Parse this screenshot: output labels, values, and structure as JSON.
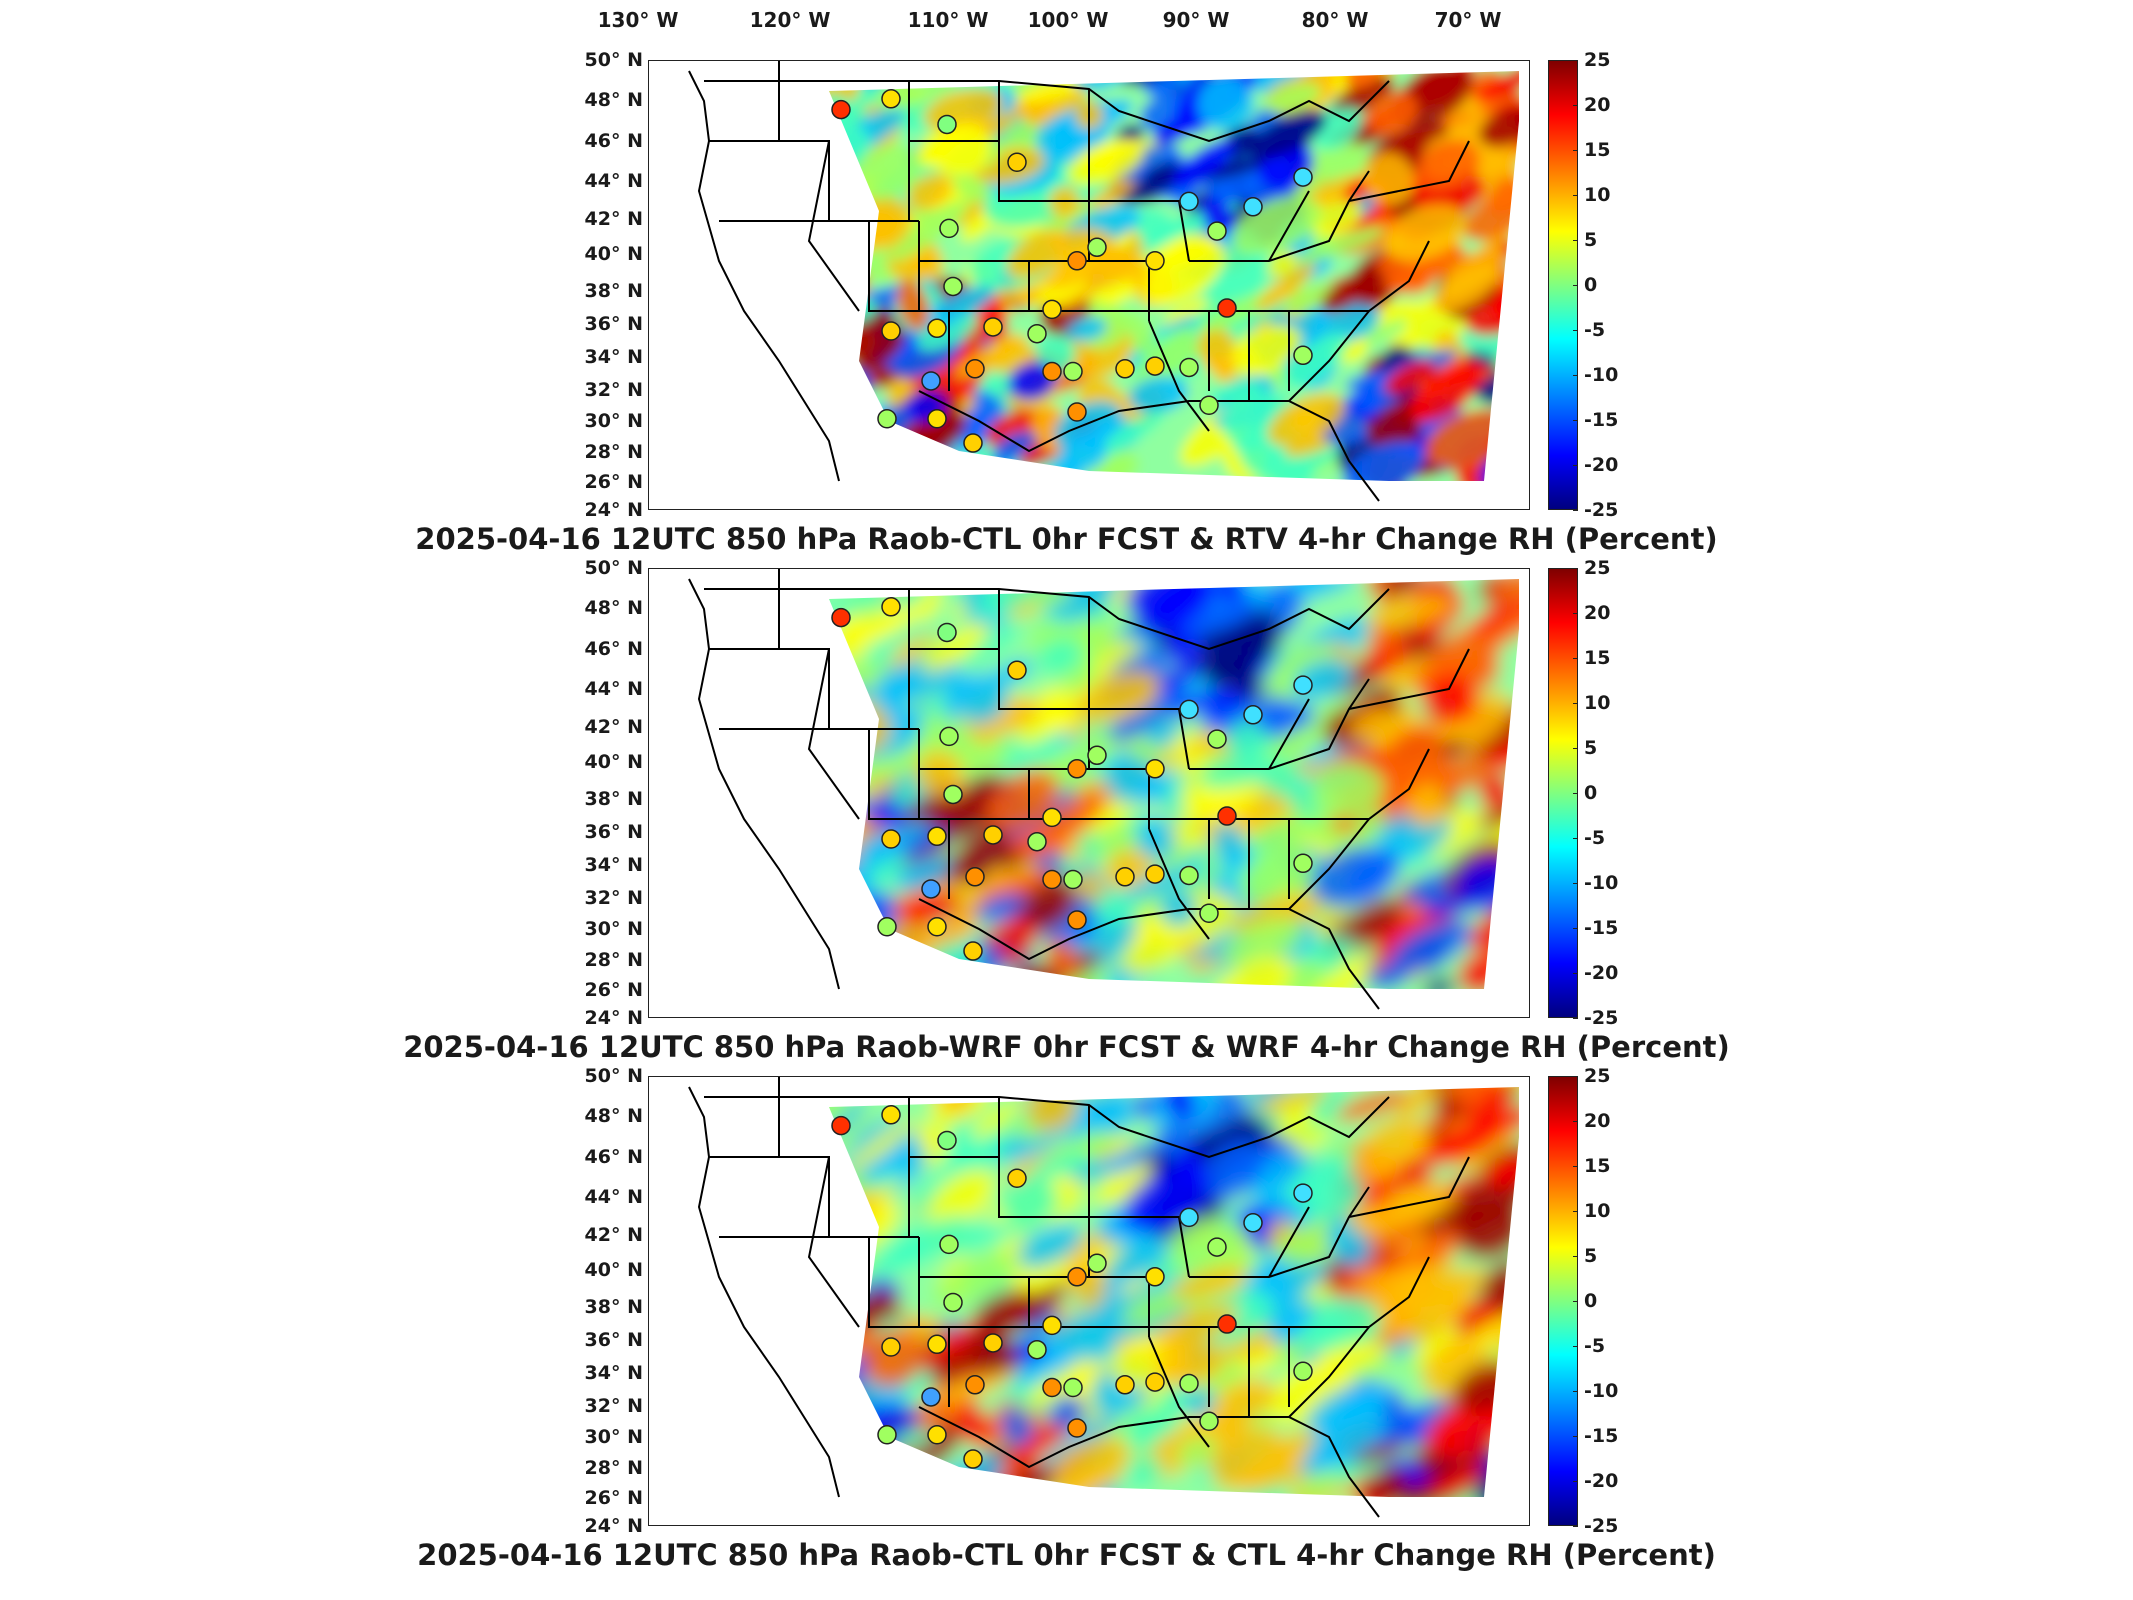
{
  "longitude_labels": [
    "130° W",
    "120° W",
    "110° W",
    "100° W",
    "90° W",
    "80° W",
    "70° W"
  ],
  "latitude_labels": [
    "50° N",
    "48° N",
    "46° N",
    "44° N",
    "42° N",
    "40° N",
    "38° N",
    "36° N",
    "34° N",
    "32° N",
    "30° N",
    "28° N",
    "26° N",
    "24° N"
  ],
  "colorbar": {
    "ticks": [
      "25",
      "20",
      "15",
      "10",
      "5",
      "0",
      "-5",
      "-10",
      "-15",
      "-20",
      "-25"
    ],
    "min": -25,
    "max": 25,
    "colormap": "jet"
  },
  "panels": [
    {
      "title": "2025-04-16 12UTC 850 hPa Raob-CTL 0hr FCST & RTV 4-hr Change RH (Percent)"
    },
    {
      "title": "2025-04-16 12UTC 850 hPa Raob-WRF 0hr FCST & WRF 4-hr Change RH (Percent)"
    },
    {
      "title": "2025-04-16 12UTC 850 hPa Raob-CTL 0hr FCST & CTL 4-hr Change RH (Percent)"
    }
  ]
}
